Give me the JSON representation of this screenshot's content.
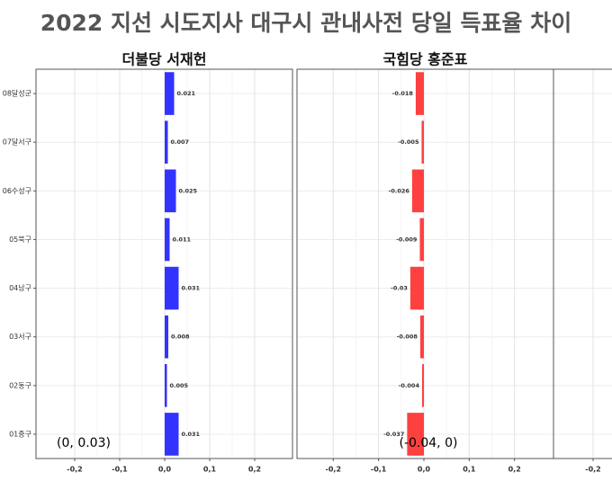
{
  "title": "2022 지선 시도지사  대구시 관내사전 당일 득표율 차이",
  "chart_data": [
    {
      "type": "bar",
      "title": "더불당 서재헌",
      "color": "#3333ff",
      "categories": [
        "08달성군",
        "07달서구",
        "06수성구",
        "05북구",
        "04남구",
        "03서구",
        "02동구",
        "01중구"
      ],
      "values": [
        0.021,
        0.007,
        0.025,
        0.011,
        0.031,
        0.008,
        0.005,
        0.031
      ],
      "annotation": "(0, 0.03)",
      "xlim": [
        -0.286,
        0.284
      ],
      "xticks": [
        {
          "value": -0.2,
          "label": "-0,2"
        },
        {
          "value": -0.1,
          "label": "-0,1"
        },
        {
          "value": 0,
          "label": "0,0"
        },
        {
          "value": 0.1,
          "label": "0,1"
        },
        {
          "value": 0.2,
          "label": "0,2"
        }
      ],
      "grid": true
    },
    {
      "type": "bar",
      "title": "국힘당 홍준표",
      "color": "#ff4040",
      "values": [
        -0.018,
        -0.005,
        -0.026,
        -0.009,
        -0.03,
        -0.008,
        -0.004,
        -0.037
      ],
      "annotation": "(-0.04, 0)",
      "xlim": [
        -0.28,
        0.286
      ],
      "xticks": [
        {
          "value": -0.2,
          "label": "-0,2"
        },
        {
          "value": -0.1,
          "label": "-0,1"
        },
        {
          "value": 0,
          "label": "0,0"
        },
        {
          "value": 0.1,
          "label": "0,1"
        },
        {
          "value": 0.2,
          "label": "0,2"
        }
      ],
      "grid": true
    },
    {
      "type": "bar",
      "xlim": [
        -0.288,
        0.282
      ],
      "xticks": [
        {
          "value": -0.2,
          "label": "-0,2"
        }
      ],
      "grid": true
    }
  ]
}
